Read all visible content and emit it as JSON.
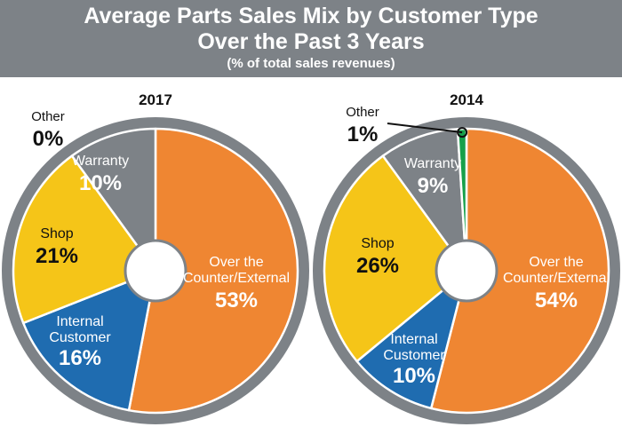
{
  "header": {
    "title_line1": "Average Parts Sales Mix by Customer Type",
    "title_line2": "Over the Past 3 Years",
    "subtitle": "(% of total sales revenues)"
  },
  "colors": {
    "header_bg": "#7d8287",
    "over_the_counter": "#ef8632",
    "internal_customer": "#1f6cb0",
    "shop": "#f5c518",
    "warranty": "#7d8287",
    "other": "#17a04a",
    "ring": "#7d8287"
  },
  "chart_data": [
    {
      "type": "pie",
      "title": "2017",
      "slices": [
        {
          "label": "Over the Counter/External",
          "value": 53,
          "value_label": "53%"
        },
        {
          "label": "Internal Customer",
          "value": 16,
          "value_label": "16%"
        },
        {
          "label": "Shop",
          "value": 21,
          "value_label": "21%"
        },
        {
          "label": "Warranty",
          "value": 10,
          "value_label": "10%"
        },
        {
          "label": "Other",
          "value": 0,
          "value_label": "0%"
        }
      ]
    },
    {
      "type": "pie",
      "title": "2014",
      "slices": [
        {
          "label": "Over the Counter/External",
          "value": 54,
          "value_label": "54%"
        },
        {
          "label": "Internal Customer",
          "value": 10,
          "value_label": "10%"
        },
        {
          "label": "Shop",
          "value": 26,
          "value_label": "26%"
        },
        {
          "label": "Warranty",
          "value": 9,
          "value_label": "9%"
        },
        {
          "label": "Other",
          "value": 1,
          "value_label": "1%"
        }
      ]
    }
  ]
}
